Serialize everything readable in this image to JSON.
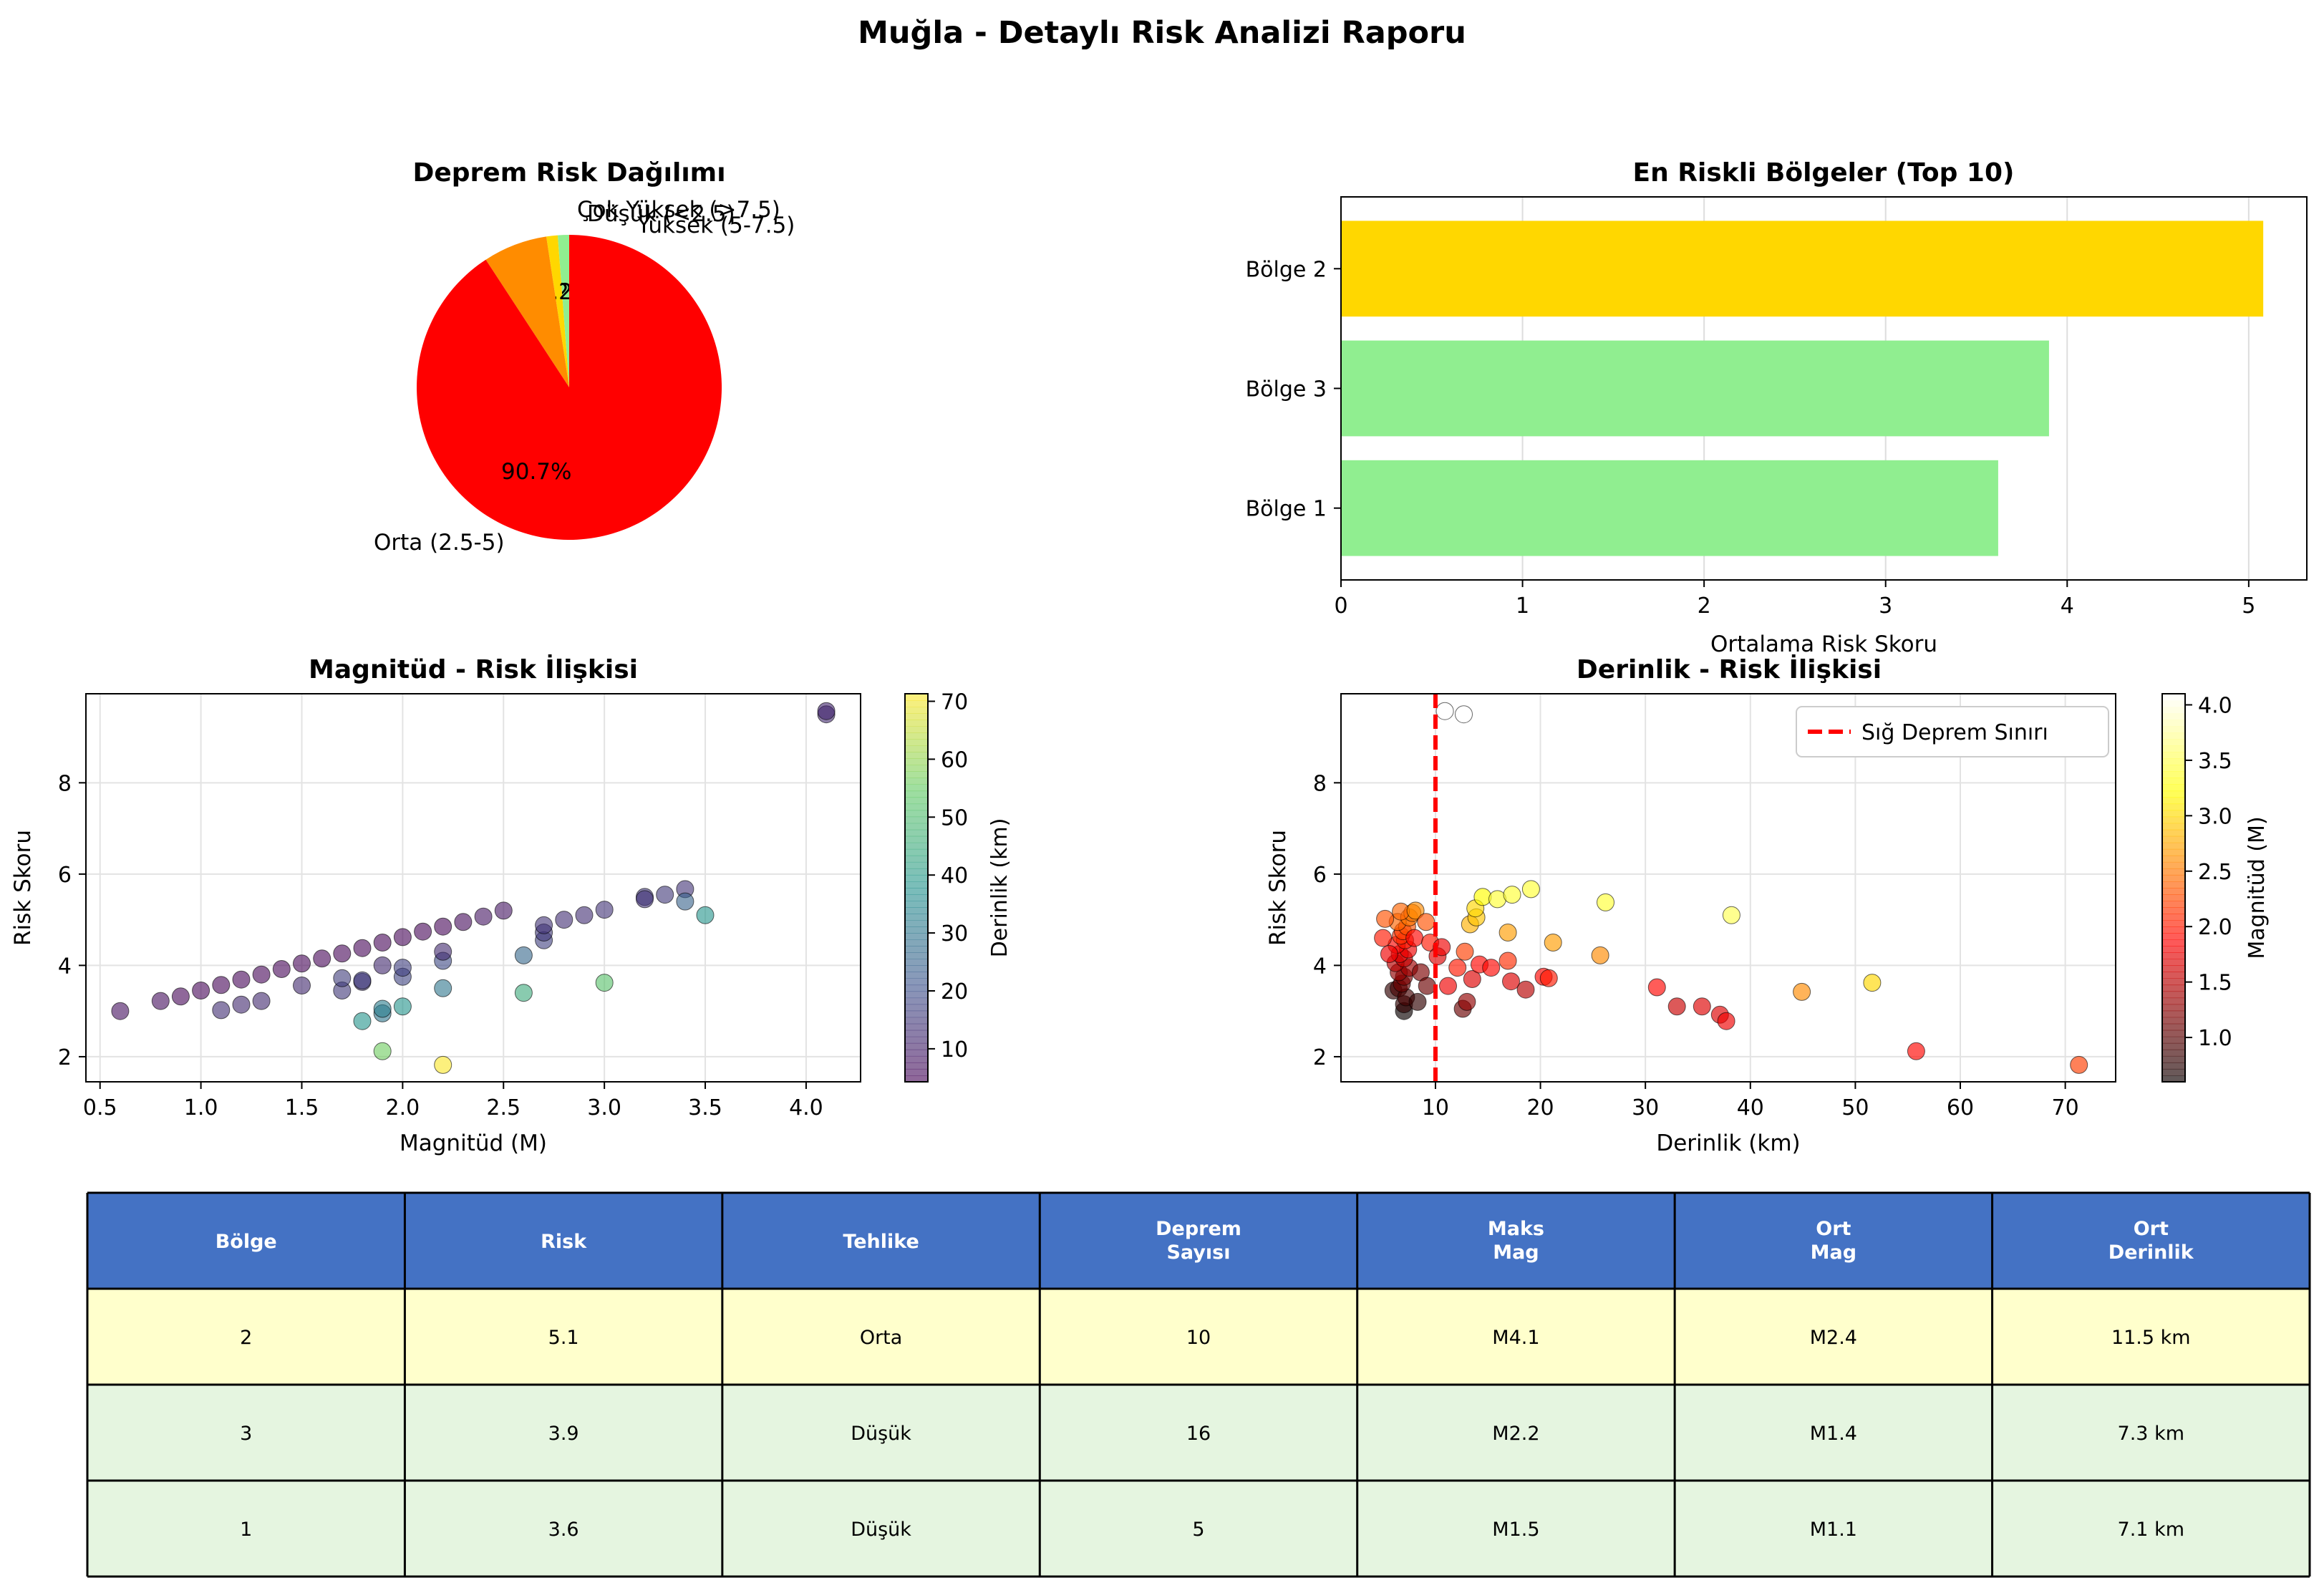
{
  "suptitle": "Muğla - Detaylı Risk Analizi Raporu",
  "chart_data": [
    {
      "type": "pie",
      "title": "Deprem Risk Dağılımı",
      "slices": [
        {
          "label": "Çok Yüksek (>7.5)",
          "pct_label": "1.2%",
          "value": 1.2,
          "color": "#90ee90"
        },
        {
          "label": "Düşük (<2.5)",
          "pct_label": "1.2%",
          "value": 1.2,
          "color": "#ffd700"
        },
        {
          "label": "Yüksek (5-7.5)",
          "pct_label": "6.8%",
          "value": 6.8,
          "color": "#ff8c00"
        },
        {
          "label": "Orta (2.5-5)",
          "pct_label": "90.7%",
          "value": 90.7,
          "color": "#ff0000"
        }
      ]
    },
    {
      "type": "bar",
      "orientation": "horizontal",
      "title": "En Riskli Bölgeler (Top 10)",
      "xlabel": "Ortalama Risk Skoru",
      "xlim": [
        0,
        5.32
      ],
      "xticks": [
        "0",
        "1",
        "2",
        "3",
        "4",
        "5"
      ],
      "categories": [
        "Bölge 2",
        "Bölge 3",
        "Bölge 1"
      ],
      "values": [
        5.08,
        3.9,
        3.62
      ],
      "colors": [
        "#ffd700",
        "#90ee90",
        "#90ee90"
      ],
      "grid": true
    },
    {
      "type": "scatter",
      "title": "Magnitüd - Risk İlişkisi",
      "xlabel": "Magnitüd (M)",
      "ylabel": "Risk Skoru",
      "xlim": [
        0.43,
        4.27
      ],
      "ylim": [
        1.45,
        9.95
      ],
      "xticks": [
        "0.5",
        "1.0",
        "1.5",
        "2.0",
        "2.5",
        "3.0",
        "3.5",
        "4.0"
      ],
      "yticks": [
        "2",
        "4",
        "6",
        "8"
      ],
      "colorbar": {
        "label": "Derinlik (km)",
        "range": [
          4.3,
          71.3
        ],
        "ticks": [
          "10",
          "20",
          "30",
          "40",
          "50",
          "60",
          "70"
        ],
        "colormap": "viridis"
      },
      "points": [
        [
          0.6,
          3.0,
          7
        ],
        [
          0.8,
          3.22,
          6.5
        ],
        [
          0.9,
          3.32,
          5
        ],
        [
          1.0,
          3.45,
          5
        ],
        [
          1.1,
          3.57,
          5
        ],
        [
          1.2,
          3.69,
          5
        ],
        [
          1.3,
          3.8,
          5
        ],
        [
          1.4,
          3.92,
          5
        ],
        [
          1.5,
          4.04,
          5
        ],
        [
          1.6,
          4.15,
          5
        ],
        [
          1.7,
          4.26,
          5
        ],
        [
          1.8,
          4.38,
          5
        ],
        [
          1.9,
          4.5,
          5
        ],
        [
          2.0,
          4.62,
          5
        ],
        [
          2.1,
          4.74,
          5
        ],
        [
          2.2,
          4.85,
          5
        ],
        [
          2.3,
          4.95,
          6
        ],
        [
          2.4,
          5.07,
          8
        ],
        [
          2.5,
          5.2,
          8
        ],
        [
          1.1,
          3.02,
          13
        ],
        [
          1.2,
          3.14,
          12
        ],
        [
          1.3,
          3.22,
          12
        ],
        [
          1.5,
          3.56,
          12
        ],
        [
          1.7,
          3.45,
          15
        ],
        [
          1.7,
          3.72,
          16
        ],
        [
          1.8,
          3.64,
          14
        ],
        [
          1.8,
          3.67,
          16
        ],
        [
          1.9,
          4.0,
          12
        ],
        [
          2.0,
          3.75,
          18
        ],
        [
          2.0,
          3.95,
          17
        ],
        [
          2.2,
          4.1,
          19
        ],
        [
          2.2,
          4.3,
          12
        ],
        [
          2.7,
          4.55,
          17
        ],
        [
          2.7,
          4.72,
          15
        ],
        [
          2.7,
          4.88,
          14
        ],
        [
          2.8,
          5.0,
          13
        ],
        [
          2.9,
          5.1,
          13
        ],
        [
          3.0,
          5.22,
          14
        ],
        [
          3.2,
          5.5,
          15
        ],
        [
          3.2,
          5.45,
          14
        ],
        [
          3.3,
          5.55,
          15
        ],
        [
          3.4,
          5.67,
          14
        ],
        [
          4.1,
          9.5,
          12
        ],
        [
          4.1,
          9.57,
          11
        ],
        [
          1.8,
          2.78,
          38
        ],
        [
          1.9,
          2.95,
          30
        ],
        [
          1.9,
          3.05,
          32
        ],
        [
          2.0,
          3.1,
          38
        ],
        [
          2.2,
          3.5,
          30
        ],
        [
          2.6,
          3.4,
          45
        ],
        [
          2.6,
          4.22,
          26
        ],
        [
          3.0,
          3.62,
          52
        ],
        [
          3.4,
          5.4,
          25
        ],
        [
          3.5,
          5.1,
          38
        ],
        [
          1.9,
          2.12,
          56
        ],
        [
          2.2,
          1.82,
          71
        ]
      ]
    },
    {
      "type": "scatter",
      "title": "Derinlik - Risk İlişkisi",
      "xlabel": "Derinlik (km)",
      "ylabel": "Risk Skoru",
      "xlim": [
        1.0,
        74.8
      ],
      "ylim": [
        1.45,
        9.95
      ],
      "xticks": [
        "10",
        "20",
        "30",
        "40",
        "50",
        "60",
        "70"
      ],
      "yticks": [
        "2",
        "4",
        "6",
        "8"
      ],
      "vline": {
        "x": 10,
        "label": "Sığ Deprem Sınırı",
        "color": "#ff0000"
      },
      "legend": "top-right",
      "colorbar": {
        "label": "Magnitüd (M)",
        "range": [
          0.6,
          4.1
        ],
        "ticks": [
          "1.0",
          "1.5",
          "2.0",
          "2.5",
          "3.0",
          "3.5",
          "4.0"
        ],
        "colormap": "hot"
      },
      "points": [
        [
          6,
          3.45,
          0.8
        ],
        [
          6.5,
          3.5,
          0.9
        ],
        [
          7,
          3.0,
          0.6
        ],
        [
          7,
          3.15,
          0.8
        ],
        [
          7.2,
          3.3,
          0.9
        ],
        [
          6.8,
          3.6,
          1.1
        ],
        [
          7,
          3.75,
          1.2
        ],
        [
          6.5,
          3.85,
          1.3
        ],
        [
          7.5,
          3.95,
          1.4
        ],
        [
          6.2,
          4.05,
          1.5
        ],
        [
          7,
          4.15,
          1.6
        ],
        [
          6.6,
          4.25,
          1.7
        ],
        [
          7.4,
          4.35,
          1.8
        ],
        [
          6.3,
          4.45,
          1.9
        ],
        [
          7.1,
          4.55,
          2.0
        ],
        [
          6.7,
          4.65,
          2.1
        ],
        [
          6.9,
          4.75,
          2.2
        ],
        [
          7.3,
          4.85,
          2.3
        ],
        [
          6.4,
          4.95,
          2.4
        ],
        [
          7.5,
          5.05,
          2.5
        ],
        [
          7.8,
          5.15,
          2.5
        ],
        [
          8,
          4.6,
          1.9
        ],
        [
          8.3,
          3.2,
          0.8
        ],
        [
          8.6,
          3.85,
          1.2
        ],
        [
          9.2,
          3.55,
          1.1
        ],
        [
          9.5,
          4.5,
          2.0
        ],
        [
          10.2,
          4.2,
          1.7
        ],
        [
          10.6,
          4.4,
          1.8
        ],
        [
          5.2,
          5.02,
          2.3
        ],
        [
          6.7,
          5.18,
          2.4
        ],
        [
          8.1,
          5.2,
          2.6
        ],
        [
          9.1,
          4.95,
          2.3
        ],
        [
          5,
          4.6,
          2.0
        ],
        [
          5.6,
          4.25,
          1.8
        ],
        [
          11.2,
          3.55,
          1.8
        ],
        [
          12.1,
          3.95,
          2.0
        ],
        [
          12.6,
          3.05,
          1.1
        ],
        [
          13.0,
          3.2,
          1.3
        ],
        [
          13.5,
          3.7,
          1.7
        ],
        [
          14.2,
          4.02,
          1.9
        ],
        [
          15.3,
          3.95,
          1.9
        ],
        [
          16.9,
          4.1,
          2.1
        ],
        [
          17.2,
          3.65,
          1.7
        ],
        [
          18.6,
          3.47,
          1.5
        ],
        [
          20.3,
          3.75,
          1.9
        ],
        [
          20.8,
          3.72,
          2.0
        ],
        [
          12.8,
          4.3,
          2.2
        ],
        [
          13.3,
          4.9,
          2.8
        ],
        [
          13.9,
          5.05,
          2.9
        ],
        [
          13.8,
          5.25,
          3.0
        ],
        [
          14.5,
          5.5,
          3.2
        ],
        [
          15.9,
          5.45,
          3.4
        ],
        [
          17.3,
          5.55,
          3.4
        ],
        [
          19.1,
          5.67,
          3.4
        ],
        [
          16.9,
          4.72,
          2.7
        ],
        [
          21.2,
          4.5,
          2.7
        ],
        [
          25.7,
          4.22,
          2.6
        ],
        [
          26.2,
          5.38,
          3.4
        ],
        [
          31.1,
          3.52,
          1.9
        ],
        [
          33.0,
          3.1,
          1.6
        ],
        [
          35.4,
          3.1,
          1.7
        ],
        [
          37.1,
          2.92,
          1.7
        ],
        [
          37.7,
          2.78,
          1.8
        ],
        [
          38.2,
          5.1,
          3.5
        ],
        [
          44.9,
          3.42,
          2.6
        ],
        [
          51.6,
          3.62,
          3.0
        ],
        [
          55.8,
          2.12,
          1.9
        ],
        [
          71.3,
          1.82,
          2.2
        ],
        [
          10.9,
          9.57,
          4.1
        ],
        [
          12.7,
          9.5,
          4.1
        ]
      ]
    },
    {
      "type": "table",
      "columns": [
        "Bölge",
        "Risk",
        "Tehlike",
        "Deprem\nSayısı",
        "Maks\nMag",
        "Ort\nMag",
        "Ort\nDerinlik"
      ],
      "header_color": "#4472c4",
      "rows": [
        {
          "cells": [
            "2",
            "5.1",
            "Orta",
            "10",
            "M4.1",
            "M2.4",
            "11.5 km"
          ],
          "color": "#ffffcc"
        },
        {
          "cells": [
            "3",
            "3.9",
            "Düşük",
            "16",
            "M2.2",
            "M1.4",
            "7.3 km"
          ],
          "color": "#e5f5e0"
        },
        {
          "cells": [
            "1",
            "3.6",
            "Düşük",
            "5",
            "M1.5",
            "M1.1",
            "7.1 km"
          ],
          "color": "#e5f5e0"
        }
      ]
    }
  ]
}
